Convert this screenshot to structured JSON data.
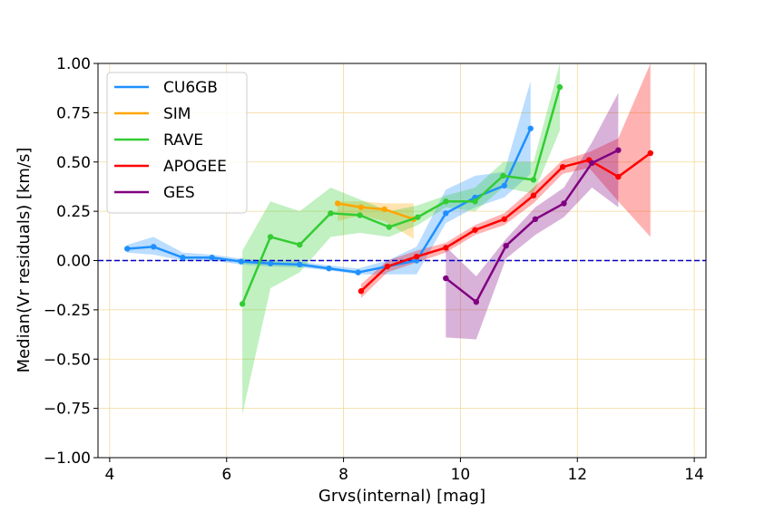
{
  "chart_data": {
    "type": "line",
    "title": "",
    "xlabel": "Grvs(internal) [mag]",
    "ylabel": "Median(Vr residuals) [km/s]",
    "xlim": [
      3.8,
      14.2
    ],
    "ylim": [
      -1.0,
      1.0
    ],
    "xticks": [
      4,
      6,
      8,
      10,
      12,
      14
    ],
    "xtick_labels": [
      "4",
      "6",
      "8",
      "10",
      "12",
      "14"
    ],
    "yticks": [
      -1.0,
      -0.75,
      -0.5,
      -0.25,
      0.0,
      0.25,
      0.5,
      0.75,
      1.0
    ],
    "ytick_labels": [
      "−1.00",
      "−0.75",
      "−0.50",
      "−0.25",
      "0.00",
      "0.25",
      "0.50",
      "0.75",
      "1.00"
    ],
    "grid": true,
    "grid_color": "#f2d99a",
    "zero_line_color": "#0000cc",
    "legend_position": "top-left",
    "series": [
      {
        "name": "CU6GB",
        "color": "#1e90ff",
        "x": [
          4.3,
          4.75,
          5.25,
          5.75,
          6.25,
          6.75,
          7.25,
          7.75,
          8.25,
          8.75,
          9.25,
          9.75,
          10.25,
          10.75,
          11.2
        ],
        "y": [
          0.06,
          0.07,
          0.015,
          0.015,
          -0.005,
          -0.015,
          -0.02,
          -0.04,
          -0.06,
          -0.03,
          0.0,
          0.24,
          0.32,
          0.38,
          0.67
        ],
        "lower": [
          0.04,
          0.03,
          0.0,
          0.0,
          -0.02,
          -0.03,
          -0.035,
          -0.05,
          -0.07,
          -0.07,
          -0.07,
          0.19,
          0.27,
          0.32,
          0.44
        ],
        "upper": [
          0.08,
          0.12,
          0.04,
          0.03,
          0.01,
          0.0,
          -0.005,
          -0.025,
          -0.04,
          0.0,
          0.07,
          0.36,
          0.43,
          0.45,
          0.91
        ]
      },
      {
        "name": "SIM",
        "color": "#ffa500",
        "x": [
          7.9,
          8.3,
          8.7,
          9.2
        ],
        "y": [
          0.29,
          0.27,
          0.26,
          0.21
        ],
        "lower": [
          0.2,
          0.23,
          0.2,
          0.11
        ],
        "upper": [
          0.3,
          0.3,
          0.29,
          0.29
        ]
      },
      {
        "name": "RAVE",
        "color": "#32cd32",
        "x": [
          6.27,
          6.75,
          7.25,
          7.78,
          8.28,
          8.78,
          9.27,
          9.75,
          10.25,
          10.73,
          11.25,
          11.7
        ],
        "y": [
          -0.22,
          0.12,
          0.08,
          0.24,
          0.23,
          0.17,
          0.22,
          0.3,
          0.3,
          0.43,
          0.41,
          0.88
        ],
        "lower": [
          -0.78,
          -0.14,
          -0.06,
          0.12,
          0.14,
          0.12,
          0.18,
          0.27,
          0.25,
          0.37,
          0.34,
          0.66
        ],
        "upper": [
          0.05,
          0.3,
          0.25,
          0.37,
          0.31,
          0.25,
          0.28,
          0.33,
          0.37,
          0.5,
          0.5,
          1.0
        ]
      },
      {
        "name": "APOGEE",
        "color": "#ff0000",
        "x": [
          8.3,
          8.75,
          9.25,
          9.75,
          10.25,
          10.75,
          11.25,
          11.75,
          12.2,
          12.7,
          13.25
        ],
        "y": [
          -0.155,
          -0.03,
          0.02,
          0.065,
          0.155,
          0.21,
          0.33,
          0.475,
          0.51,
          0.425,
          0.545
        ],
        "lower": [
          -0.19,
          -0.06,
          -0.01,
          0.04,
          0.13,
          0.18,
          0.29,
          0.44,
          0.47,
          0.3,
          0.12
        ],
        "upper": [
          -0.12,
          0.0,
          0.05,
          0.09,
          0.18,
          0.24,
          0.37,
          0.51,
          0.55,
          0.62,
          1.0
        ]
      },
      {
        "name": "GES",
        "color": "#800080",
        "x": [
          9.75,
          10.27,
          10.78,
          11.28,
          11.77,
          12.25,
          12.7
        ],
        "y": [
          -0.09,
          -0.21,
          0.075,
          0.21,
          0.29,
          0.495,
          0.56
        ],
        "lower": [
          -0.39,
          -0.4,
          0.01,
          0.13,
          0.22,
          0.37,
          0.27
        ],
        "upper": [
          0.07,
          -0.08,
          0.11,
          0.27,
          0.37,
          0.6,
          0.85
        ]
      }
    ]
  }
}
